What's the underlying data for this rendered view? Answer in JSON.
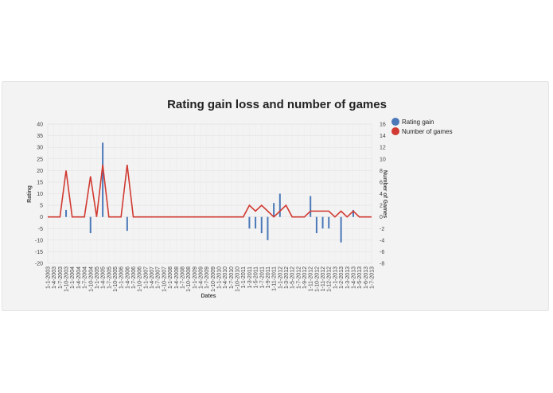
{
  "chart_data": {
    "type": "bar+line",
    "title": "Rating gain loss and number of games",
    "xlabel": "Dates",
    "ylabel_left": "Rating",
    "ylabel_right": "Number of Games",
    "ylim_left": [
      -20,
      40
    ],
    "yticks_left": [
      -20,
      -15,
      -10,
      -5,
      0,
      5,
      10,
      15,
      20,
      25,
      30,
      35,
      40
    ],
    "ylim_right": [
      -8,
      16
    ],
    "yticks_right": [
      -8,
      -6,
      -4,
      -2,
      0,
      2,
      4,
      6,
      8,
      10,
      12,
      14,
      16
    ],
    "grid": true,
    "legend_position": "right",
    "categories": [
      "1-1-2003",
      "1-4-2003",
      "1-7-2003",
      "1-10-2003",
      "1-1-2004",
      "1-4-2004",
      "1-7-2004",
      "1-10-2004",
      "1-1-2005",
      "1-4-2005",
      "1-7-2005",
      "1-10-2005",
      "1-1-2006",
      "1-4-2006",
      "1-7-2006",
      "1-10-2006",
      "1-1-2007",
      "1-4-2007",
      "1-7-2007",
      "1-10-2007",
      "1-1-2008",
      "1-4-2008",
      "1-7-2008",
      "1-10-2008",
      "1-1-2009",
      "1-4-2009",
      "1-7-2009",
      "1-10-2009",
      "1-1-2010",
      "1-4-2010",
      "1-7-2010",
      "1-10-2010",
      "1-1-2011",
      "1-3-2011",
      "1-5-2011",
      "1-7-2011",
      "1-9-2011",
      "1-11-2011",
      "1-1-2012",
      "1-3-2012",
      "1-5-2012",
      "1-7-2012",
      "1-9-2012",
      "1-11-2012",
      "1-10-2012",
      "1-11-2012",
      "1-12-2012",
      "1-1-2013",
      "1-2-2013",
      "1-3-2013",
      "1-4-2013",
      "1-5-2013",
      "1-6-2013",
      "1-7-2013"
    ],
    "series": [
      {
        "name": "Rating gain",
        "kind": "bar",
        "axis": "left",
        "color": "#4a78b8",
        "values": [
          0,
          0,
          0,
          3,
          0,
          0,
          0,
          -7,
          0,
          32,
          0,
          0,
          0,
          -6,
          0,
          0,
          0,
          0,
          0,
          0,
          0,
          0,
          0,
          0,
          0,
          0,
          0,
          0,
          0,
          0,
          0,
          0,
          0,
          -5,
          -5,
          -7,
          -10,
          6,
          10,
          0,
          0,
          0,
          0,
          9,
          -7,
          -5,
          -5,
          0,
          -11,
          0,
          3,
          0,
          0,
          0
        ]
      },
      {
        "name": "Number of games",
        "kind": "line",
        "axis": "right",
        "color": "#d13a32",
        "values": [
          0,
          0,
          0,
          8,
          0,
          0,
          0,
          7,
          0,
          9,
          0,
          0,
          0,
          9,
          0,
          0,
          0,
          0,
          0,
          0,
          0,
          0,
          0,
          0,
          0,
          0,
          0,
          0,
          0,
          0,
          0,
          0,
          0,
          2,
          1,
          2,
          1,
          0,
          1,
          2,
          0,
          0,
          0,
          1,
          1,
          1,
          1,
          0,
          1,
          0,
          1,
          0,
          0,
          0
        ]
      }
    ]
  }
}
